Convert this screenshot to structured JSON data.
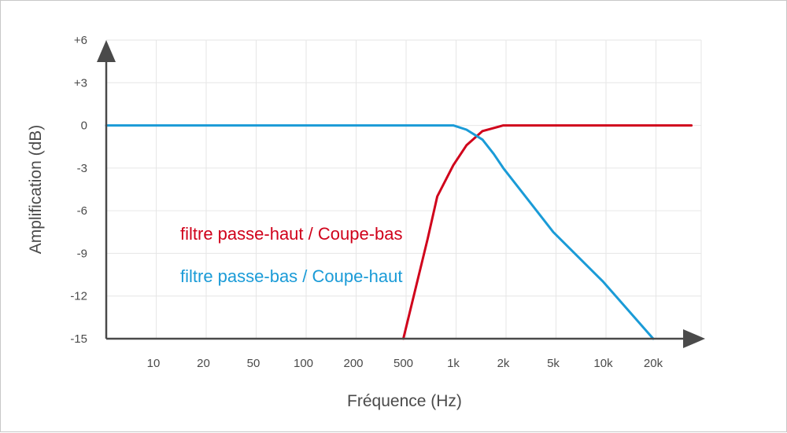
{
  "chart_data": {
    "type": "line",
    "xlabel": "Fréquence (Hz)",
    "ylabel": "Amplification (dB)",
    "x_scale": "log",
    "x_ticks": [
      "10",
      "20",
      "50",
      "100",
      "200",
      "500",
      "1k",
      "2k",
      "5k",
      "10k",
      "20k"
    ],
    "y_ticks": [
      "+6",
      "+3",
      "0",
      "-3",
      "-6",
      "-9",
      "-12",
      "-15"
    ],
    "ylim": [
      -15,
      6
    ],
    "grid": true,
    "series": [
      {
        "name": "filtre passe-haut / Coupe-bas",
        "color": "#d0021b",
        "points": [
          {
            "x": 500,
            "y": -15
          },
          {
            "x": 700,
            "y": -8
          },
          {
            "x": 800,
            "y": -5
          },
          {
            "x": 1000,
            "y": -2.8
          },
          {
            "x": 1200,
            "y": -1.4
          },
          {
            "x": 1500,
            "y": -0.4
          },
          {
            "x": 2000,
            "y": 0
          },
          {
            "x": 5000,
            "y": 0
          },
          {
            "x": 10000,
            "y": 0
          },
          {
            "x": 20000,
            "y": 0
          },
          {
            "x": 34000,
            "y": 0
          }
        ]
      },
      {
        "name": "filtre passe-bas / Coupe-haut",
        "color": "#1a9bd7",
        "points": [
          {
            "x": 5,
            "y": 0
          },
          {
            "x": 10,
            "y": 0
          },
          {
            "x": 100,
            "y": 0
          },
          {
            "x": 1000,
            "y": 0
          },
          {
            "x": 1200,
            "y": -0.3
          },
          {
            "x": 1500,
            "y": -1
          },
          {
            "x": 1750,
            "y": -2
          },
          {
            "x": 2000,
            "y": -3
          },
          {
            "x": 5000,
            "y": -7.5
          },
          {
            "x": 10000,
            "y": -11
          },
          {
            "x": 20000,
            "y": -15
          }
        ]
      }
    ],
    "legend": [
      {
        "label": "filtre passe-haut / Coupe-bas",
        "color": "#d0021b"
      },
      {
        "label": "filtre passe-bas / Coupe-haut",
        "color": "#1a9bd7"
      }
    ]
  }
}
